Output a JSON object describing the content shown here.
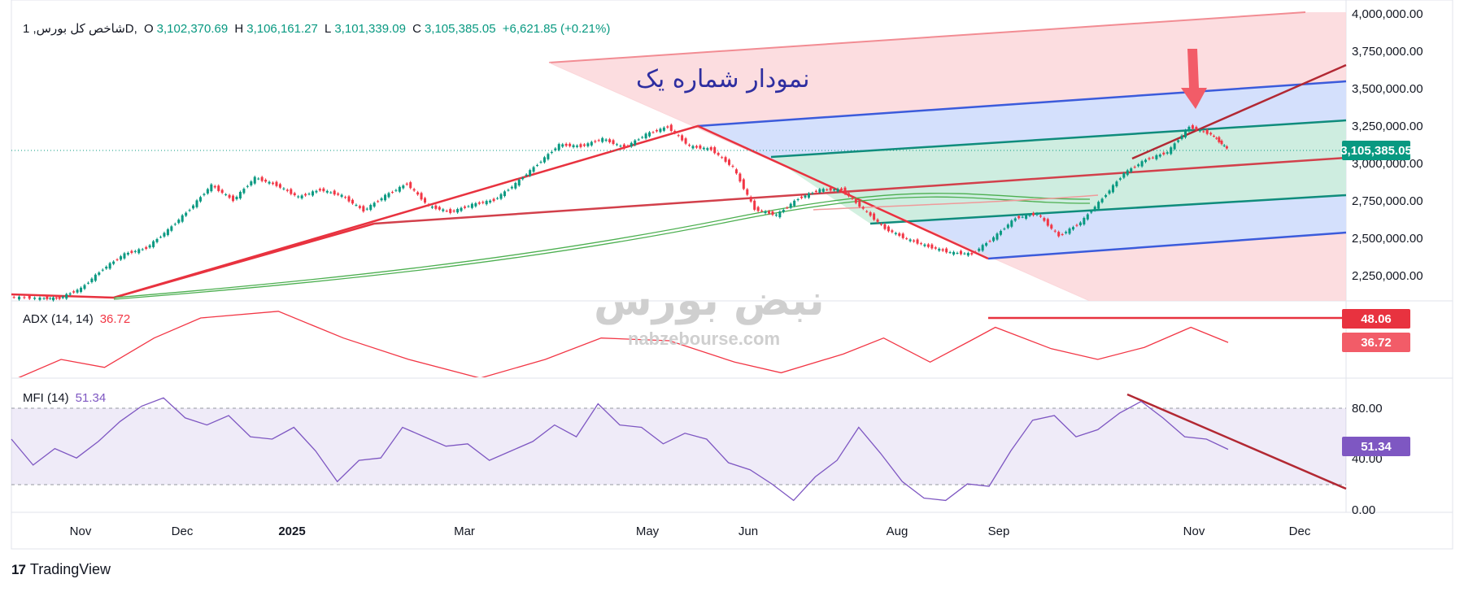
{
  "header": {
    "symbol": "شاخص کل بورس, 1D,",
    "open_label": "O",
    "open": "3,102,370.69",
    "high_label": "H",
    "high": "3,106,161.27",
    "low_label": "L",
    "low": "3,101,339.09",
    "close_label": "C",
    "close": "3,105,385.05",
    "change": "+6,621.85 (+0.21%)"
  },
  "annotation_text": "نمودار شماره یک",
  "watermark": {
    "fa": "نبض بورس",
    "url": "nabzebourse.com"
  },
  "price_tag": "3,105,385.05",
  "price_axis": [
    "4,000,000.00",
    "3,750,000.00",
    "3,500,000.00",
    "3,250,000.00",
    "3,000,000.00",
    "2,750,000.00",
    "2,500,000.00",
    "2,250,000.00"
  ],
  "adx": {
    "title": "ADX (14, 14)",
    "value": "36.72",
    "tag_high": "48.06",
    "tag_value": "36.72",
    "color": "#f23645"
  },
  "mfi": {
    "title": "MFI (14)",
    "value": "51.34",
    "tag": "51.34",
    "axis": [
      "80.00",
      "40.00",
      "0.00"
    ],
    "color": "#7e57c2"
  },
  "time_axis": [
    "Nov",
    "Dec",
    "2025",
    "Mar",
    "May",
    "Jun",
    "Aug",
    "Sep",
    "Nov",
    "Dec"
  ],
  "brand": {
    "logo": "17",
    "name": "TradingView"
  },
  "colors": {
    "up": "#089981",
    "down": "#f23645",
    "blue": "#2962ff",
    "teal": "#00897b",
    "red_line": "#e8323f",
    "dark_red": "#b22833",
    "purple": "#7e57c2"
  },
  "chart_data": {
    "type": "line",
    "price": {
      "name": "شاخص کل بورس",
      "ylim": [
        2050000,
        4020000
      ],
      "points": [
        [
          "2024-10-20",
          2112000
        ],
        [
          "2024-10-30",
          2104000
        ],
        [
          "2024-11-05",
          2105000
        ],
        [
          "2024-11-12",
          2170000
        ],
        [
          "2024-11-19",
          2300000
        ],
        [
          "2024-11-26",
          2400000
        ],
        [
          "2024-12-03",
          2440000
        ],
        [
          "2024-12-10",
          2560000
        ],
        [
          "2024-12-17",
          2700000
        ],
        [
          "2024-12-24",
          2860000
        ],
        [
          "2024-12-31",
          2760000
        ],
        [
          "2025-01-07",
          2910000
        ],
        [
          "2025-01-14",
          2860000
        ],
        [
          "2025-01-21",
          2780000
        ],
        [
          "2025-01-28",
          2830000
        ],
        [
          "2025-02-04",
          2790000
        ],
        [
          "2025-02-11",
          2690000
        ],
        [
          "2025-02-18",
          2790000
        ],
        [
          "2025-02-25",
          2870000
        ],
        [
          "2025-03-04",
          2720000
        ],
        [
          "2025-03-11",
          2680000
        ],
        [
          "2025-03-18",
          2730000
        ],
        [
          "2025-03-25",
          2760000
        ],
        [
          "2025-04-01",
          2870000
        ],
        [
          "2025-04-08",
          3000000
        ],
        [
          "2025-04-15",
          3130000
        ],
        [
          "2025-04-22",
          3120000
        ],
        [
          "2025-04-29",
          3170000
        ],
        [
          "2025-05-06",
          3110000
        ],
        [
          "2025-05-13",
          3200000
        ],
        [
          "2025-05-20",
          3250000
        ],
        [
          "2025-05-27",
          3120000
        ],
        [
          "2025-06-03",
          3100000
        ],
        [
          "2025-06-10",
          2980000
        ],
        [
          "2025-06-17",
          2700000
        ],
        [
          "2025-06-24",
          2660000
        ],
        [
          "2025-07-01",
          2770000
        ],
        [
          "2025-07-08",
          2830000
        ],
        [
          "2025-07-15",
          2830000
        ],
        [
          "2025-07-22",
          2700000
        ],
        [
          "2025-07-29",
          2570000
        ],
        [
          "2025-08-05",
          2500000
        ],
        [
          "2025-08-12",
          2450000
        ],
        [
          "2025-08-19",
          2410000
        ],
        [
          "2025-08-26",
          2400000
        ],
        [
          "2025-09-02",
          2510000
        ],
        [
          "2025-09-09",
          2640000
        ],
        [
          "2025-09-16",
          2670000
        ],
        [
          "2025-09-23",
          2520000
        ],
        [
          "2025-09-30",
          2610000
        ],
        [
          "2025-10-07",
          2770000
        ],
        [
          "2025-10-14",
          2940000
        ],
        [
          "2025-10-21",
          3030000
        ],
        [
          "2025-10-28",
          3080000
        ],
        [
          "2025-11-04",
          3250000
        ],
        [
          "2025-11-11",
          3200000
        ],
        [
          "2025-11-16",
          3105385
        ]
      ]
    },
    "adx": {
      "name": "ADX (14, 14)",
      "ylim": [
        10,
        55
      ],
      "points": [
        [
          "2024-10-20",
          8
        ],
        [
          "2024-11-05",
          24
        ],
        [
          "2024-11-19",
          18
        ],
        [
          "2024-12-05",
          40
        ],
        [
          "2024-12-20",
          55
        ],
        [
          "2025-01-14",
          60
        ],
        [
          "2025-02-04",
          40
        ],
        [
          "2025-02-25",
          24
        ],
        [
          "2025-03-20",
          10
        ],
        [
          "2025-04-10",
          24
        ],
        [
          "2025-04-28",
          40
        ],
        [
          "2025-05-20",
          38
        ],
        [
          "2025-06-10",
          22
        ],
        [
          "2025-06-25",
          14
        ],
        [
          "2025-07-15",
          28
        ],
        [
          "2025-07-28",
          40
        ],
        [
          "2025-08-12",
          22
        ],
        [
          "2025-08-25",
          38
        ],
        [
          "2025-09-02",
          48
        ],
        [
          "2025-09-20",
          32
        ],
        [
          "2025-10-05",
          24
        ],
        [
          "2025-10-20",
          33
        ],
        [
          "2025-11-04",
          48
        ],
        [
          "2025-11-16",
          36.72
        ]
      ]
    },
    "mfi": {
      "name": "MFI (14)",
      "ylim": [
        0,
        100
      ],
      "bands": [
        20,
        80
      ],
      "points": [
        [
          "2024-10-20",
          60
        ],
        [
          "2024-10-27",
          38
        ],
        [
          "2024-11-03",
          52
        ],
        [
          "2024-11-10",
          44
        ],
        [
          "2024-11-17",
          58
        ],
        [
          "2024-11-24",
          75
        ],
        [
          "2024-12-01",
          88
        ],
        [
          "2024-12-08",
          95
        ],
        [
          "2024-12-15",
          78
        ],
        [
          "2024-12-22",
          72
        ],
        [
          "2024-12-29",
          80
        ],
        [
          "2025-01-05",
          62
        ],
        [
          "2025-01-12",
          60
        ],
        [
          "2025-01-19",
          70
        ],
        [
          "2025-01-26",
          50
        ],
        [
          "2025-02-02",
          24
        ],
        [
          "2025-02-09",
          42
        ],
        [
          "2025-02-16",
          44
        ],
        [
          "2025-02-23",
          70
        ],
        [
          "2025-03-02",
          62
        ],
        [
          "2025-03-09",
          54
        ],
        [
          "2025-03-16",
          56
        ],
        [
          "2025-03-23",
          42
        ],
        [
          "2025-03-30",
          50
        ],
        [
          "2025-04-06",
          58
        ],
        [
          "2025-04-13",
          72
        ],
        [
          "2025-04-20",
          62
        ],
        [
          "2025-04-27",
          90
        ],
        [
          "2025-05-04",
          72
        ],
        [
          "2025-05-11",
          70
        ],
        [
          "2025-05-18",
          56
        ],
        [
          "2025-05-25",
          65
        ],
        [
          "2025-06-01",
          60
        ],
        [
          "2025-06-08",
          40
        ],
        [
          "2025-06-15",
          34
        ],
        [
          "2025-06-22",
          22
        ],
        [
          "2025-06-29",
          8
        ],
        [
          "2025-07-06",
          28
        ],
        [
          "2025-07-13",
          42
        ],
        [
          "2025-07-20",
          70
        ],
        [
          "2025-07-27",
          48
        ],
        [
          "2025-08-03",
          24
        ],
        [
          "2025-08-10",
          10
        ],
        [
          "2025-08-17",
          8
        ],
        [
          "2025-08-24",
          22
        ],
        [
          "2025-08-31",
          20
        ],
        [
          "2025-09-07",
          50
        ],
        [
          "2025-09-14",
          76
        ],
        [
          "2025-09-21",
          80
        ],
        [
          "2025-09-28",
          62
        ],
        [
          "2025-10-05",
          68
        ],
        [
          "2025-10-12",
          82
        ],
        [
          "2025-10-19",
          92
        ],
        [
          "2025-10-26",
          78
        ],
        [
          "2025-11-02",
          62
        ],
        [
          "2025-11-09",
          60
        ],
        [
          "2025-11-16",
          51.34
        ]
      ]
    }
  }
}
